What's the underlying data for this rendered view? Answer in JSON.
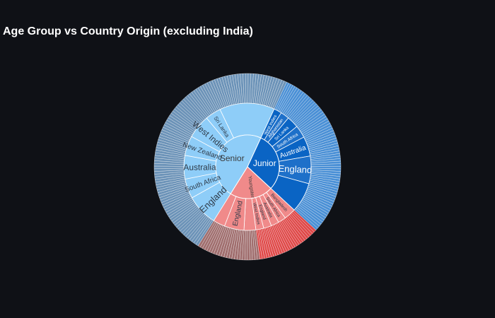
{
  "title": "Age Group vs Country Origin (excluding India)",
  "chart_data": {
    "type": "sunburst",
    "title": "Age Group vs Country Origin (excluding India)",
    "root_colors": {
      "Senior": "#8ecdf8",
      "Junior": "#0a64c4",
      "Youngster": "#f08a8a"
    },
    "outer_colors": {
      "Senior": "#6c93b8",
      "Junior": "#4a90d6",
      "Youngster": "#a06e6e"
    },
    "roots": [
      {
        "name": "Senior",
        "value": 48,
        "children": [
          {
            "name": "England",
            "value": 8
          },
          {
            "name": "South Africa",
            "value": 5
          },
          {
            "name": "Australia",
            "value": 6
          },
          {
            "name": "New Zealand",
            "value": 5
          },
          {
            "name": "West Indies",
            "value": 6
          },
          {
            "name": "Sri Lanka",
            "value": 4
          },
          {
            "name": "",
            "value": 14
          }
        ]
      },
      {
        "name": "Junior",
        "value": 30,
        "children": [
          {
            "name": "West Indies",
            "value": 2
          },
          {
            "name": "Afghanistan",
            "value": 2.2
          },
          {
            "name": "Sri Lanka",
            "value": 3
          },
          {
            "name": "South Africa",
            "value": 3.2
          },
          {
            "name": "Australia",
            "value": 5
          },
          {
            "name": "England",
            "value": 7
          },
          {
            "name": "",
            "value": 7.6
          }
        ]
      },
      {
        "name": "Youngster",
        "value": 22,
        "children": [
          {
            "name": "Bangladesh",
            "value": 3
          },
          {
            "name": "South Africa",
            "value": 2
          },
          {
            "name": "Australia",
            "value": 2
          },
          {
            "name": "England",
            "value": 2
          },
          {
            "name": "West Indies",
            "value": 2
          },
          {
            "name": "",
            "value": 3
          },
          {
            "name": "England",
            "value": 5
          },
          {
            "name": "",
            "value": 3
          }
        ]
      }
    ]
  }
}
